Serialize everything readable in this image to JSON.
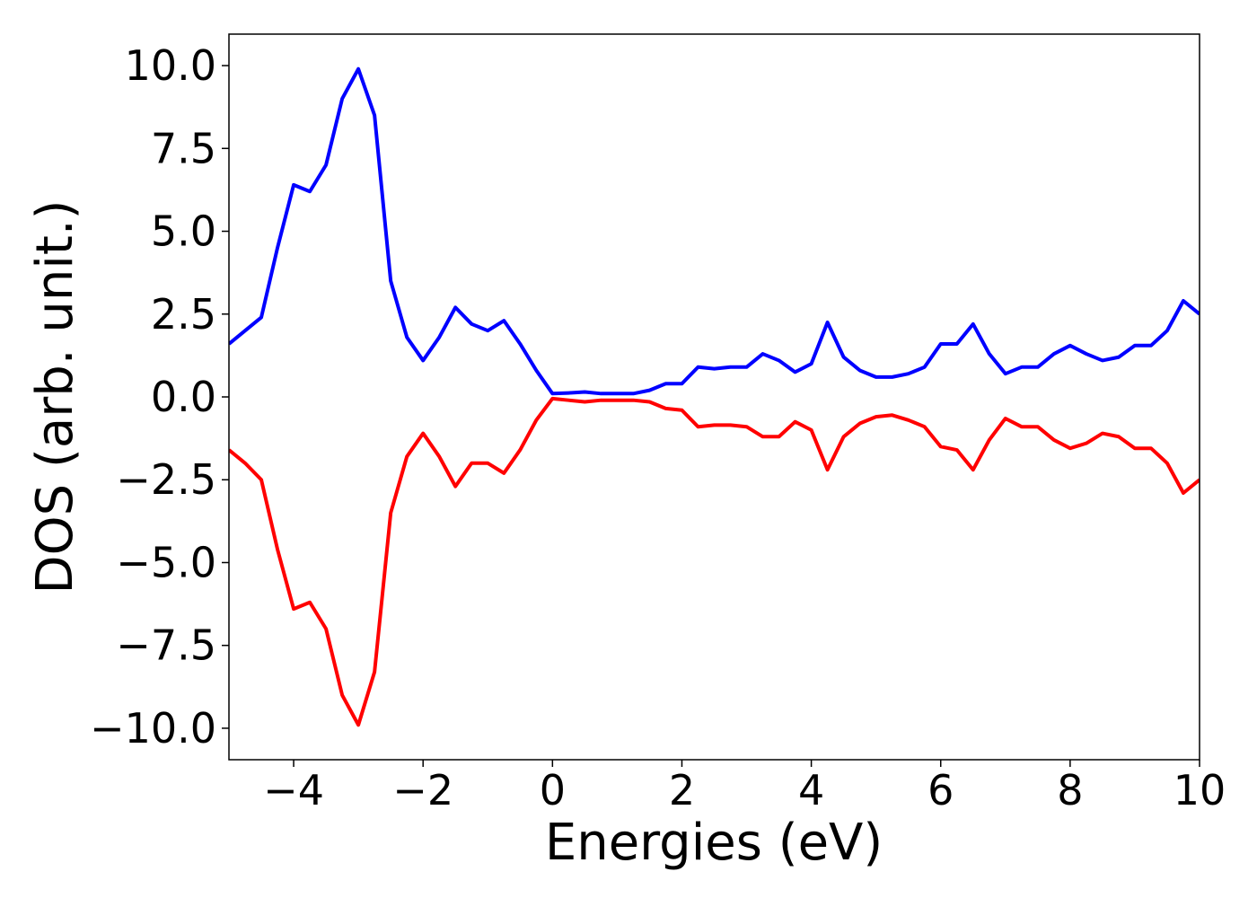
{
  "chart_data": {
    "type": "line",
    "x_label": "Energies (eV)",
    "y_label": "DOS (arb. unit.)",
    "x": [
      -5,
      -4.75,
      -4.5,
      -4.25,
      -4,
      -3.75,
      -3.5,
      -3.25,
      -3,
      -2.75,
      -2.5,
      -2.25,
      -2,
      -1.75,
      -1.5,
      -1.25,
      -1,
      -0.75,
      -0.5,
      -0.25,
      0,
      0.25,
      0.5,
      0.75,
      1,
      1.25,
      1.5,
      1.75,
      2,
      2.25,
      2.5,
      2.75,
      3,
      3.25,
      3.5,
      3.75,
      4,
      4.25,
      4.5,
      4.75,
      5,
      5.25,
      5.5,
      5.75,
      6,
      6.25,
      6.5,
      6.75,
      7,
      7.25,
      7.5,
      7.75,
      8,
      8.25,
      8.5,
      8.75,
      9,
      9.25,
      9.5,
      9.75,
      10
    ],
    "series": [
      {
        "color": "#0000ff",
        "values": [
          1.6,
          2.0,
          2.4,
          4.5,
          6.4,
          6.2,
          7.0,
          9.0,
          9.9,
          8.5,
          3.5,
          1.8,
          1.1,
          1.8,
          2.7,
          2.2,
          2.0,
          2.3,
          1.6,
          0.8,
          0.1,
          0.12,
          0.15,
          0.1,
          0.1,
          0.1,
          0.2,
          0.4,
          0.4,
          0.9,
          0.85,
          0.9,
          0.9,
          1.3,
          1.1,
          0.75,
          1.0,
          2.25,
          1.2,
          0.8,
          0.6,
          0.6,
          0.7,
          0.9,
          1.6,
          1.6,
          2.2,
          1.3,
          0.7,
          0.9,
          0.9,
          1.3,
          1.55,
          1.3,
          1.1,
          1.2,
          1.55,
          1.55,
          2.0,
          2.9,
          2.5
        ]
      },
      {
        "color": "#ff0000",
        "values": [
          -1.6,
          -2.0,
          -2.5,
          -4.6,
          -6.4,
          -6.2,
          -7.0,
          -9.0,
          -9.9,
          -8.3,
          -3.5,
          -1.8,
          -1.1,
          -1.8,
          -2.7,
          -2.0,
          -2.0,
          -2.3,
          -1.6,
          -0.7,
          -0.05,
          -0.1,
          -0.15,
          -0.1,
          -0.1,
          -0.1,
          -0.15,
          -0.35,
          -0.4,
          -0.9,
          -0.85,
          -0.85,
          -0.9,
          -1.2,
          -1.2,
          -0.75,
          -1.0,
          -2.2,
          -1.2,
          -0.8,
          -0.6,
          -0.55,
          -0.7,
          -0.9,
          -1.5,
          -1.6,
          -2.2,
          -1.3,
          -0.65,
          -0.9,
          -0.9,
          -1.3,
          -1.55,
          -1.4,
          -1.1,
          -1.2,
          -1.55,
          -1.55,
          -2.0,
          -2.9,
          -2.5
        ]
      }
    ],
    "xlim": [
      -5,
      10
    ],
    "ylim": [
      -10.95,
      10.95
    ],
    "xticks": [
      {
        "value": -4,
        "label": "−4"
      },
      {
        "value": -2,
        "label": "−2"
      },
      0,
      2,
      4,
      6,
      8,
      10
    ],
    "yticks": [
      {
        "value": 10,
        "label": "10.0"
      },
      {
        "value": 7.5,
        "label": "7.5"
      },
      {
        "value": 5,
        "label": "5.0"
      },
      {
        "value": 2.5,
        "label": "2.5"
      },
      {
        "value": 0,
        "label": "0.0"
      },
      {
        "value": -2.5,
        "label": "−2.5"
      },
      {
        "value": -5,
        "label": "−5.0"
      },
      {
        "value": -7.5,
        "label": "−7.5"
      },
      {
        "value": -10,
        "label": "−10.0"
      }
    ]
  }
}
